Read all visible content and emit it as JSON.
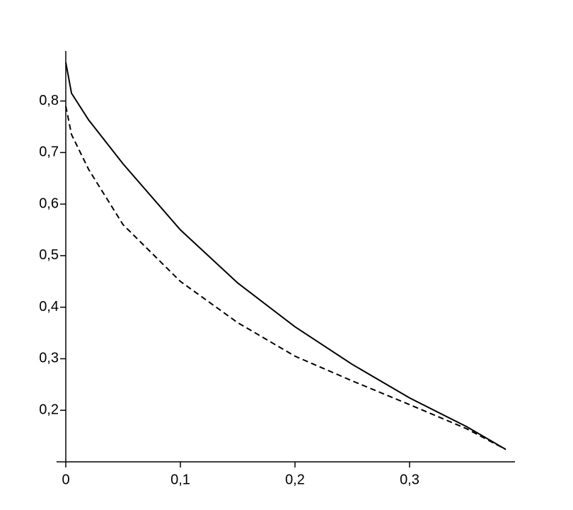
{
  "chart_data": {
    "type": "line",
    "x": [
      0,
      0.005,
      0.02,
      0.05,
      0.1,
      0.15,
      0.2,
      0.25,
      0.3,
      0.35,
      0.384
    ],
    "series": [
      {
        "color": "#000000",
        "style": "solid",
        "values": [
          0.875,
          0.815,
          0.763,
          0.678,
          0.55,
          0.447,
          0.362,
          0.289,
          0.224,
          0.168,
          0.124
        ]
      },
      {
        "color": "#000000",
        "style": "dashed",
        "values": [
          0.79,
          0.735,
          0.667,
          0.56,
          0.45,
          0.37,
          0.305,
          0.257,
          0.211,
          0.164,
          0.124
        ]
      }
    ],
    "xlim": [
      0,
      0.392
    ],
    "ylim": [
      0.1,
      0.897
    ],
    "xticks": [
      0,
      {
        "value": 0.1,
        "label": "0,1"
      },
      {
        "value": 0.2,
        "label": "0,2"
      },
      {
        "value": 0.3,
        "label": "0,3"
      }
    ],
    "yticks": [
      {
        "value": 0.2,
        "label": "0,2"
      },
      {
        "value": 0.3,
        "label": "0,3"
      },
      {
        "value": 0.4,
        "label": "0,4"
      },
      {
        "value": 0.5,
        "label": "0,5"
      },
      {
        "value": 0.6,
        "label": "0,6"
      },
      {
        "value": 0.7,
        "label": "0,7"
      },
      {
        "value": 0.8,
        "label": "0,8"
      }
    ],
    "grid": false
  }
}
